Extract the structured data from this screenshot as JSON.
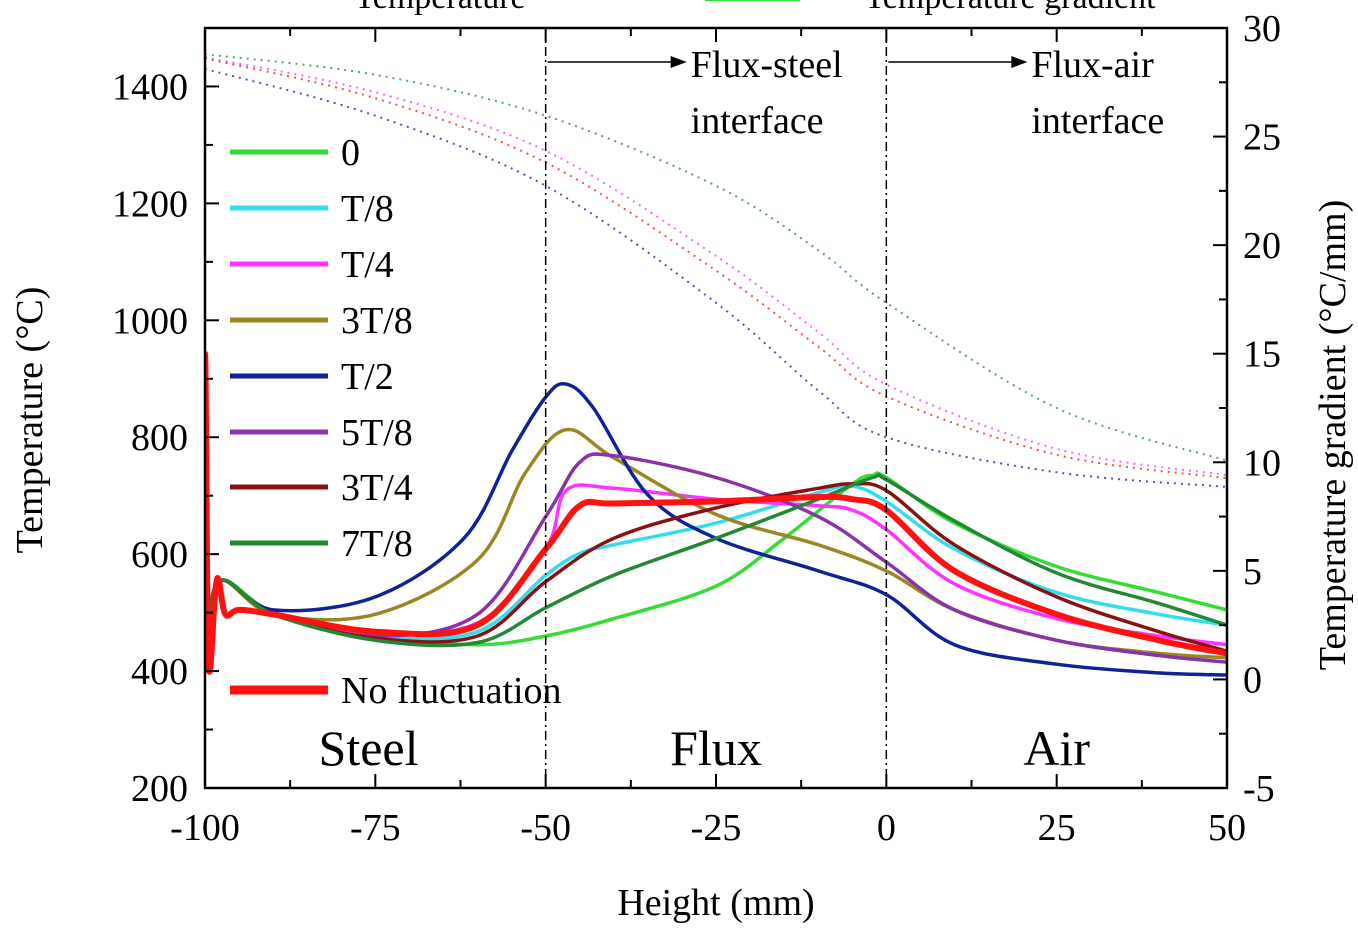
{
  "chart_data": {
    "type": "line",
    "header_labels": {
      "left": "Temperature",
      "right": "Temperature gradient"
    },
    "xlabel": "Height (mm)",
    "ylabel_left": "Temperature (°C)",
    "ylabel_right": "Temperature gradient (°C/mm)",
    "xlim": [
      -100,
      50
    ],
    "ylim_left": [
      200,
      1500
    ],
    "ylim_right": [
      -5,
      30
    ],
    "xticks": [
      -100,
      -75,
      -50,
      -25,
      0,
      25,
      50
    ],
    "xtick_labels": [
      "-100",
      "-75",
      "-50",
      "-25",
      "0",
      "25",
      "50"
    ],
    "yticks_left": [
      200,
      400,
      600,
      800,
      1000,
      1200,
      1400
    ],
    "ytick_labels_left": [
      "200",
      "400",
      "600",
      "800",
      "1000",
      "1200",
      "1400"
    ],
    "yticks_right": [
      -5,
      0,
      5,
      10,
      15,
      20,
      25,
      30
    ],
    "ytick_labels_right": [
      "-5",
      "0",
      "5",
      "10",
      "15",
      "20",
      "25",
      "30"
    ],
    "interfaces": [
      {
        "x": -50,
        "label_line1": "Flux-steel",
        "label_line2": "interface"
      },
      {
        "x": 0,
        "label_line1": "Flux-air",
        "label_line2": "interface"
      }
    ],
    "regions": [
      {
        "label": "Steel",
        "x": -76
      },
      {
        "label": "Flux",
        "x": -25
      },
      {
        "label": "Air",
        "x": 25
      }
    ],
    "legend": [
      {
        "name": "0",
        "color": "#33dd33"
      },
      {
        "name": "T/8",
        "color": "#33ddee"
      },
      {
        "name": "T/4",
        "color": "#ff33ff"
      },
      {
        "name": "3T/8",
        "color": "#998822"
      },
      {
        "name": "T/2",
        "color": "#112299"
      },
      {
        "name": "5T/8",
        "color": "#8833aa"
      },
      {
        "name": "3T/4",
        "color": "#881111"
      },
      {
        "name": "7T/8",
        "color": "#228833"
      },
      {
        "name": "No fluctuation",
        "color": "#ff1111"
      }
    ],
    "temperature_series": [
      {
        "name": "0",
        "color": "#228833",
        "x": [
          -100,
          -75,
          -50,
          -25,
          -10,
          0,
          25,
          50
        ],
        "values": [
          1455,
          1420,
          1350,
          1230,
          1120,
          1030,
          850,
          760
        ]
      },
      {
        "name": "T/4",
        "color": "#ff33ff",
        "x": [
          -100,
          -75,
          -50,
          -25,
          -10,
          0,
          25,
          50
        ],
        "values": [
          1450,
          1390,
          1290,
          1110,
          980,
          890,
          780,
          735
        ]
      },
      {
        "name": "No fluctuation",
        "color": "#ff1111",
        "x": [
          -100,
          -75,
          -50,
          -25,
          -10,
          0,
          25,
          50
        ],
        "values": [
          1448,
          1380,
          1270,
          1085,
          955,
          870,
          770,
          730
        ]
      },
      {
        "name": "T/2",
        "color": "#112299",
        "x": [
          -100,
          -75,
          -50,
          -25,
          -10,
          0,
          25,
          50
        ],
        "values": [
          1430,
          1350,
          1230,
          1030,
          880,
          800,
          740,
          715
        ]
      }
    ],
    "gradient_series": [
      {
        "name": "0",
        "color": "#33dd33",
        "x": [
          -100,
          -98,
          -90,
          -75,
          -60,
          -50,
          -40,
          -25,
          -15,
          -5,
          -2,
          0,
          10,
          25,
          40,
          50
        ],
        "values": [
          0.5,
          4.5,
          3.1,
          2.0,
          1.6,
          2.0,
          2.8,
          4.3,
          6.5,
          9.0,
          9.4,
          9.3,
          7.2,
          5.2,
          4.0,
          3.2
        ]
      },
      {
        "name": "T/8",
        "color": "#33ddee",
        "x": [
          -100,
          -98,
          -90,
          -75,
          -60,
          -50,
          -45,
          -40,
          -25,
          -10,
          -5,
          0,
          10,
          25,
          40,
          50
        ],
        "values": [
          0.5,
          4.5,
          3.0,
          2.0,
          2.2,
          4.8,
          5.8,
          6.2,
          7.2,
          8.6,
          8.9,
          8.2,
          6.0,
          4.0,
          3.0,
          2.5
        ]
      },
      {
        "name": "T/4",
        "color": "#ff33ff",
        "x": [
          -100,
          -98,
          -90,
          -75,
          -60,
          -50,
          -47,
          -40,
          -25,
          -10,
          -5,
          0,
          10,
          25,
          40,
          50
        ],
        "values": [
          0.5,
          4.5,
          3.0,
          2.2,
          2.6,
          6.0,
          8.7,
          8.8,
          8.3,
          8.0,
          7.8,
          6.9,
          4.4,
          2.8,
          2.0,
          1.6
        ]
      },
      {
        "name": "3T/8",
        "color": "#998822",
        "x": [
          -100,
          -98,
          -90,
          -75,
          -60,
          -53,
          -47,
          -40,
          -25,
          -10,
          0,
          10,
          25,
          40,
          50
        ],
        "values": [
          0.5,
          4.5,
          3.0,
          3.0,
          5.5,
          9.5,
          11.5,
          10.2,
          7.6,
          6.2,
          5.0,
          3.2,
          1.8,
          1.2,
          1.0
        ]
      },
      {
        "name": "T/2",
        "color": "#112299",
        "x": [
          -100,
          -98,
          -90,
          -75,
          -62,
          -55,
          -50,
          -47,
          -43,
          -35,
          -25,
          -10,
          0,
          10,
          25,
          40,
          50
        ],
        "values": [
          0.5,
          4.5,
          3.2,
          3.8,
          6.5,
          10.5,
          13.0,
          13.6,
          12.5,
          8.5,
          6.5,
          5.0,
          3.9,
          1.6,
          0.7,
          0.3,
          0.2
        ]
      },
      {
        "name": "5T/8",
        "color": "#8833aa",
        "x": [
          -100,
          -98,
          -90,
          -75,
          -60,
          -50,
          -45,
          -40,
          -25,
          -10,
          0,
          10,
          25,
          40,
          50
        ],
        "values": [
          0.5,
          4.5,
          3.0,
          2.0,
          3.0,
          7.5,
          10.0,
          10.3,
          9.3,
          7.5,
          5.4,
          3.2,
          1.8,
          1.1,
          0.8
        ]
      },
      {
        "name": "3T/4",
        "color": "#881111",
        "x": [
          -100,
          -98,
          -90,
          -75,
          -60,
          -50,
          -40,
          -25,
          -10,
          -5,
          0,
          10,
          25,
          40,
          50
        ],
        "values": [
          0.5,
          4.5,
          3.0,
          1.9,
          2.0,
          4.5,
          6.5,
          7.9,
          8.8,
          9.0,
          8.7,
          6.2,
          3.8,
          2.2,
          1.3
        ]
      },
      {
        "name": "7T/8",
        "color": "#228833",
        "x": [
          -100,
          -98,
          -90,
          -75,
          -60,
          -50,
          -40,
          -25,
          -10,
          -2,
          0,
          10,
          25,
          40,
          50
        ],
        "values": [
          0.5,
          4.5,
          3.0,
          1.8,
          1.7,
          3.3,
          4.8,
          6.5,
          8.3,
          9.3,
          9.2,
          7.3,
          4.9,
          3.5,
          2.5
        ]
      },
      {
        "name": "No fluctuation",
        "color": "#ff1111",
        "x": [
          -100.5,
          -100,
          -99.5,
          -98.5,
          -98,
          -97,
          -95,
          -90,
          -75,
          -60,
          -50,
          -45,
          -40,
          -25,
          -10,
          -5,
          0,
          10,
          25,
          40,
          50
        ],
        "values": [
          0,
          15,
          0.8,
          4.0,
          4.6,
          3.0,
          3.2,
          3.0,
          2.2,
          2.5,
          6.0,
          8.0,
          8.1,
          8.2,
          8.4,
          8.3,
          7.8,
          5.0,
          3.0,
          1.8,
          1.2
        ]
      }
    ]
  }
}
